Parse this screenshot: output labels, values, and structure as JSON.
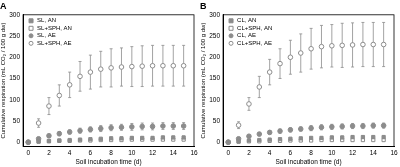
{
  "chart_data": [
    {
      "type": "scatter",
      "title": "A",
      "x_label": "Soil incubation time (d)",
      "y_label": "Cumulative respiration (mL CO₂ / 100 g dw)",
      "x": [
        0,
        1,
        2,
        3,
        4,
        5,
        6,
        7,
        8,
        9,
        10,
        11,
        12,
        13,
        14,
        15
      ],
      "series": [
        {
          "name": "SL, AN",
          "color": "#8c8c8c",
          "marker": "square",
          "values": [
            0,
            2,
            3,
            4,
            5,
            6,
            7,
            8,
            9,
            9,
            10,
            10,
            10,
            11,
            11,
            11
          ],
          "errors": [
            0,
            1,
            1,
            1,
            2,
            2,
            2,
            2,
            3,
            3,
            3,
            3,
            3,
            3,
            3,
            3
          ]
        },
        {
          "name": "SL+SPH, AN",
          "color": "#8c8c8c",
          "marker": "open_square",
          "values": [
            0,
            1,
            2,
            3,
            3,
            4,
            4,
            5,
            5,
            5,
            6,
            6,
            6,
            6,
            6,
            6
          ],
          "errors": [
            0,
            1,
            1,
            1,
            1,
            1,
            1,
            2,
            2,
            2,
            2,
            2,
            2,
            2,
            2,
            2
          ]
        },
        {
          "name": "SL, AE",
          "color": "#8c8c8c",
          "marker": "circle",
          "values": [
            0,
            8,
            15,
            20,
            24,
            27,
            30,
            32,
            34,
            35,
            36,
            37,
            37,
            38,
            38,
            38
          ],
          "errors": [
            0,
            3,
            4,
            5,
            5,
            6,
            6,
            7,
            7,
            7,
            8,
            8,
            8,
            8,
            8,
            8
          ]
        },
        {
          "name": "SL+SPH, AE",
          "color": "#8c8c8c",
          "marker": "open_circle",
          "values": [
            0,
            45,
            85,
            110,
            135,
            155,
            165,
            172,
            175,
            177,
            178,
            179,
            180,
            180,
            180,
            180
          ],
          "errors": [
            0,
            10,
            20,
            25,
            30,
            35,
            40,
            42,
            45,
            45,
            47,
            48,
            48,
            48,
            48,
            48
          ]
        }
      ],
      "xlim": [
        -0.5,
        16
      ],
      "xticks": [
        0,
        2,
        4,
        6,
        8,
        10,
        12,
        14,
        16
      ],
      "ylim": [
        -10,
        300
      ],
      "yticks": [
        0,
        50,
        100,
        150,
        200,
        250,
        300
      ],
      "grid": false,
      "legend": "top-left"
    },
    {
      "type": "scatter",
      "title": "B",
      "x_label": "Soil incubation time (d)",
      "y_label": "Cumulative respiration (mL CO₂ / 100 g dw)",
      "x": [
        0,
        1,
        2,
        3,
        4,
        5,
        6,
        7,
        8,
        9,
        10,
        11,
        12,
        13,
        14,
        15
      ],
      "series": [
        {
          "name": "CL, AN",
          "color": "#8c8c8c",
          "marker": "square",
          "values": [
            0,
            2,
            4,
            5,
            6,
            7,
            8,
            9,
            10,
            10,
            11,
            11,
            12,
            12,
            12,
            12
          ],
          "errors": [
            0,
            1,
            1,
            1,
            2,
            2,
            2,
            2,
            2,
            3,
            3,
            3,
            3,
            3,
            3,
            3
          ]
        },
        {
          "name": "CL+SPH, AN",
          "color": "#8c8c8c",
          "marker": "open_square",
          "values": [
            0,
            1,
            2,
            2,
            3,
            3,
            4,
            4,
            4,
            5,
            5,
            5,
            5,
            5,
            5,
            5
          ],
          "errors": [
            0,
            1,
            1,
            1,
            1,
            1,
            1,
            1,
            1,
            2,
            2,
            2,
            2,
            2,
            2,
            2
          ]
        },
        {
          "name": "CL, AE",
          "color": "#8c8c8c",
          "marker": "circle",
          "values": [
            0,
            8,
            14,
            19,
            23,
            26,
            29,
            31,
            33,
            35,
            36,
            37,
            38,
            38,
            39,
            39
          ],
          "errors": [
            0,
            3,
            3,
            4,
            4,
            5,
            5,
            5,
            6,
            6,
            6,
            6,
            6,
            6,
            6,
            6
          ]
        },
        {
          "name": "CL+SPH, AE",
          "color": "#8c8c8c",
          "marker": "open_circle",
          "values": [
            0,
            40,
            90,
            130,
            165,
            185,
            200,
            210,
            220,
            225,
            227,
            228,
            229,
            230,
            230,
            230
          ],
          "errors": [
            0,
            8,
            15,
            25,
            30,
            35,
            40,
            45,
            48,
            50,
            50,
            52,
            52,
            52,
            52,
            52
          ]
        }
      ],
      "xlim": [
        -0.5,
        16
      ],
      "xticks": [
        0,
        2,
        4,
        6,
        8,
        10,
        12,
        14,
        16
      ],
      "ylim": [
        -10,
        300
      ],
      "yticks": [
        0,
        50,
        100,
        150,
        200,
        250,
        300
      ],
      "grid": false,
      "legend": "top-left"
    }
  ]
}
